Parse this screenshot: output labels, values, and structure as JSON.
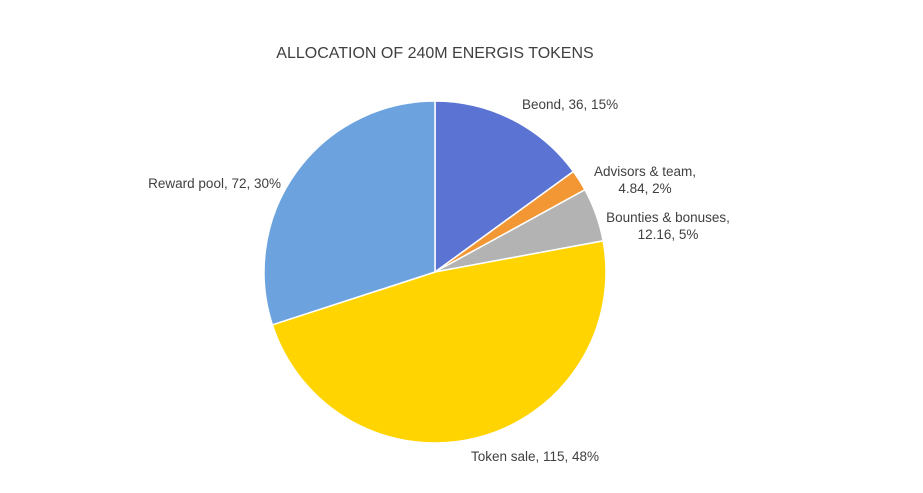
{
  "chart_data": {
    "type": "pie",
    "title": "ALLOCATION OF 240M ENERGIS TOKENS",
    "slices": [
      {
        "name": "Beond",
        "value": 36,
        "percent": "15%",
        "color": "#5B74D4",
        "label_lines": [
          "Beond, 36, 15%"
        ]
      },
      {
        "name": "Advisors & team",
        "value": 4.84,
        "percent": "2%",
        "color": "#F39634",
        "label_lines": [
          "Advisors & team,",
          "4.84, 2%"
        ]
      },
      {
        "name": "Bounties & bonuses",
        "value": 12.16,
        "percent": "5%",
        "color": "#B3B3B3",
        "label_lines": [
          "Bounties & bonuses,",
          "12.16, 5%"
        ]
      },
      {
        "name": "Token sale",
        "value": 115,
        "percent": "48%",
        "color": "#FFD400",
        "label_lines": [
          "Token sale, 115, 48%"
        ]
      },
      {
        "name": "Reward pool",
        "value": 72,
        "percent": "30%",
        "color": "#6CA3DE",
        "label_lines": [
          "Reward pool, 72, 30%"
        ]
      }
    ],
    "start": "12 o'clock",
    "direction": "clockwise",
    "legend": "none"
  }
}
